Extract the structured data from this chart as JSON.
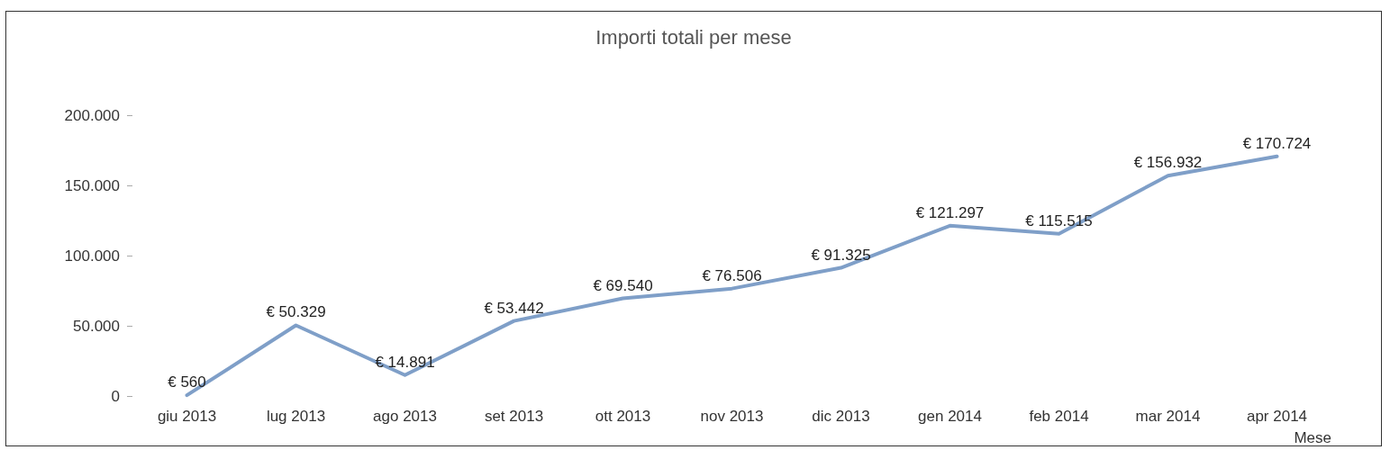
{
  "chart_data": {
    "type": "line",
    "title": "Importi totali per mese",
    "xlabel": "Mese",
    "categories": [
      "giu 2013",
      "lug 2013",
      "ago 2013",
      "set 2013",
      "ott 2013",
      "nov 2013",
      "dic 2013",
      "gen 2014",
      "feb 2014",
      "mar 2014",
      "apr 2014"
    ],
    "series": [
      {
        "color": "#7f9fc8",
        "values": [
          560,
          50329,
          14891,
          53442,
          69540,
          76506,
          91325,
          121297,
          115515,
          156932,
          170724
        ],
        "value_labels": [
          "€ 560",
          "€ 50.329",
          "€ 14.891",
          "€ 53.442",
          "€ 69.540",
          "€ 76.506",
          "€ 91.325",
          "€ 121.297",
          "€ 115.515",
          "€ 156.932",
          "€ 170.724"
        ]
      }
    ],
    "ylim": [
      0,
      200000
    ],
    "yticks": [
      {
        "value": 0,
        "label": "0"
      },
      {
        "value": 50000,
        "label": "50.000"
      },
      {
        "value": 100000,
        "label": "100.000"
      },
      {
        "value": 150000,
        "label": "150.000"
      },
      {
        "value": 200000,
        "label": "200.000"
      }
    ],
    "marker": "none",
    "line_style": "solid",
    "grid": false
  }
}
